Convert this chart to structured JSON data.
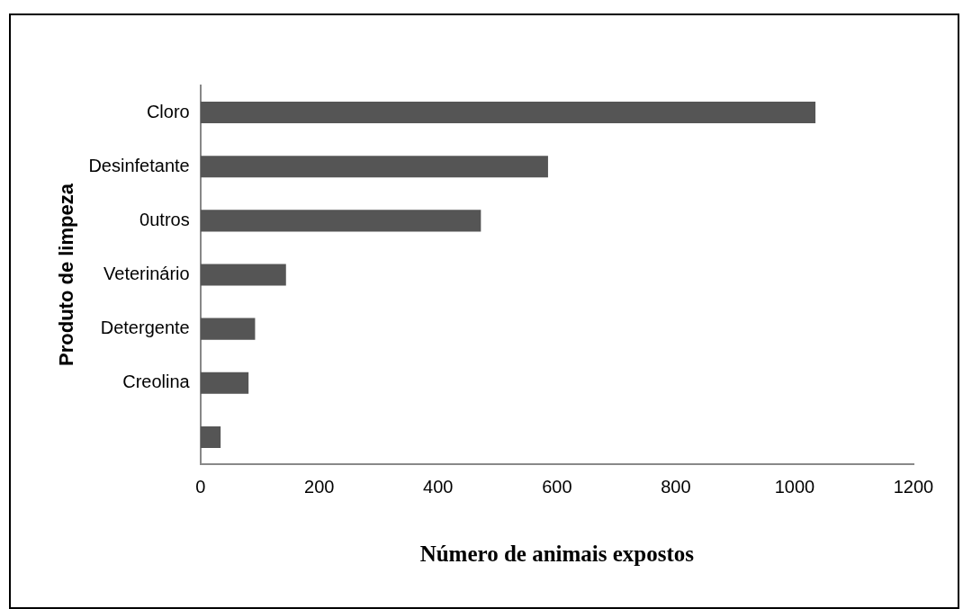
{
  "chart_data": {
    "type": "bar",
    "orientation": "horizontal",
    "xlabel": "Número de animais expostos",
    "ylabel": "Produto de limpeza",
    "categories": [
      "Cloro",
      "Desinfetante",
      "0utros",
      "Veterinário",
      "Detergente",
      "Creolina",
      null
    ],
    "values": [
      1035,
      585,
      472,
      144,
      92,
      81,
      34
    ],
    "color": "#555555",
    "xlim": [
      0,
      1200
    ],
    "xticks": [
      0,
      200,
      400,
      600,
      800,
      1000,
      1200
    ],
    "grid": false,
    "legend": false
  }
}
